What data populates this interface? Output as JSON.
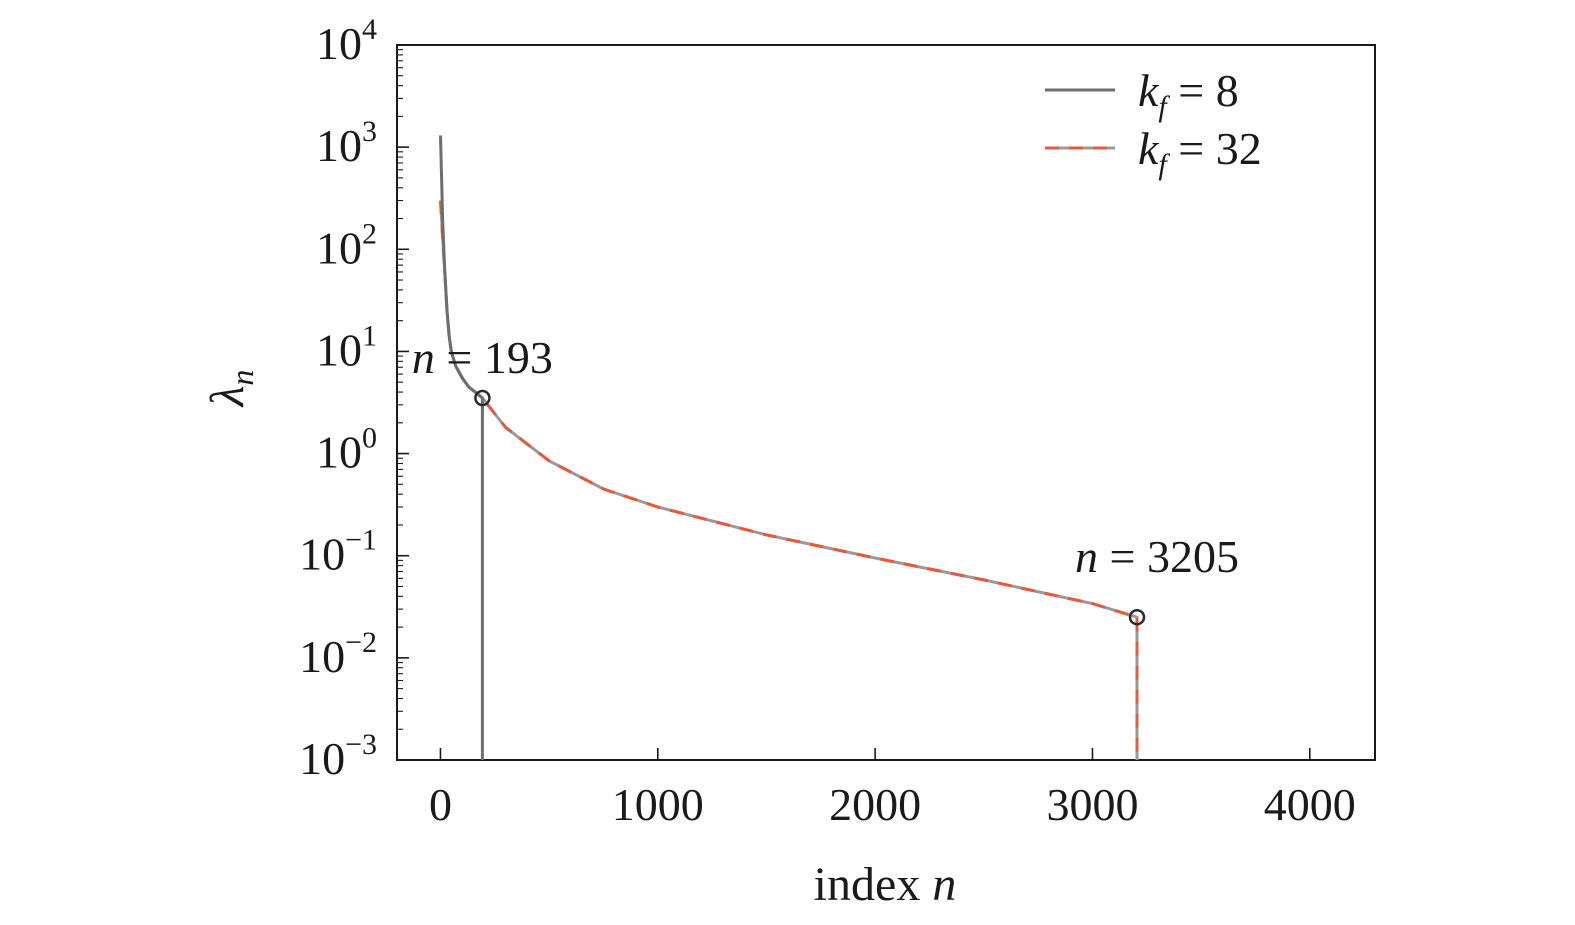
{
  "chart_data": {
    "type": "line",
    "title": "",
    "xlabel": "index",
    "xlabel_var": "n",
    "ylabel_base": "λ",
    "ylabel_sub": "n",
    "xlim": [
      -200,
      4300
    ],
    "ylim": [
      0.001,
      10000
    ],
    "yscale": "log",
    "grid": false,
    "legend_position": "top-right",
    "x_ticks": [
      {
        "value": 0,
        "label": "0"
      },
      {
        "value": 1000,
        "label": "1000"
      },
      {
        "value": 2000,
        "label": "2000"
      },
      {
        "value": 3000,
        "label": "3000"
      },
      {
        "value": 4000,
        "label": "4000"
      }
    ],
    "y_ticks": [
      {
        "value": 0.001,
        "base": "10",
        "exp": "−3"
      },
      {
        "value": 0.01,
        "base": "10",
        "exp": "−2"
      },
      {
        "value": 0.1,
        "base": "10",
        "exp": "−1"
      },
      {
        "value": 1,
        "base": "10",
        "exp": "0"
      },
      {
        "value": 10,
        "base": "10",
        "exp": "1"
      },
      {
        "value": 100,
        "base": "10",
        "exp": "2"
      },
      {
        "value": 1000,
        "base": "10",
        "exp": "3"
      },
      {
        "value": 10000,
        "base": "10",
        "exp": "4"
      }
    ],
    "series": [
      {
        "legend_var": "k",
        "legend_sub": "f",
        "legend_value": "= 8",
        "color": "#6e6e6e",
        "style": "solid",
        "x": [
          0,
          5,
          10,
          20,
          30,
          40,
          50,
          70,
          100,
          130,
          160,
          193,
          193
        ],
        "y": [
          1300,
          500,
          200,
          60,
          25,
          14,
          10,
          7.2,
          5.5,
          4.5,
          4.0,
          3.5,
          0.001
        ]
      },
      {
        "legend_var": "k",
        "legend_sub": "f",
        "legend_value": "= 32",
        "color": "#e8593a",
        "color2": "#9a9a9a",
        "style": "dashed",
        "x": [
          0,
          5,
          10,
          20,
          30,
          40,
          50,
          70,
          100,
          130,
          160,
          193,
          300,
          500,
          750,
          1000,
          1500,
          2000,
          2500,
          3000,
          3205,
          3205
        ],
        "y": [
          300,
          200,
          130,
          60,
          25,
          14,
          10,
          7.2,
          5.5,
          4.5,
          4.0,
          3.5,
          1.8,
          0.85,
          0.45,
          0.3,
          0.16,
          0.095,
          0.058,
          0.034,
          0.025,
          0.001
        ]
      }
    ],
    "markers": [
      {
        "x": 193,
        "y": 3.5
      },
      {
        "x": 3205,
        "y": 0.025
      }
    ],
    "annotations": [
      {
        "var": "n",
        "text": "= 193",
        "anchor_x": 193,
        "anchor_y": 3.5
      },
      {
        "var": "n",
        "text": "= 3205",
        "anchor_x": 3205,
        "anchor_y": 0.025
      }
    ]
  }
}
